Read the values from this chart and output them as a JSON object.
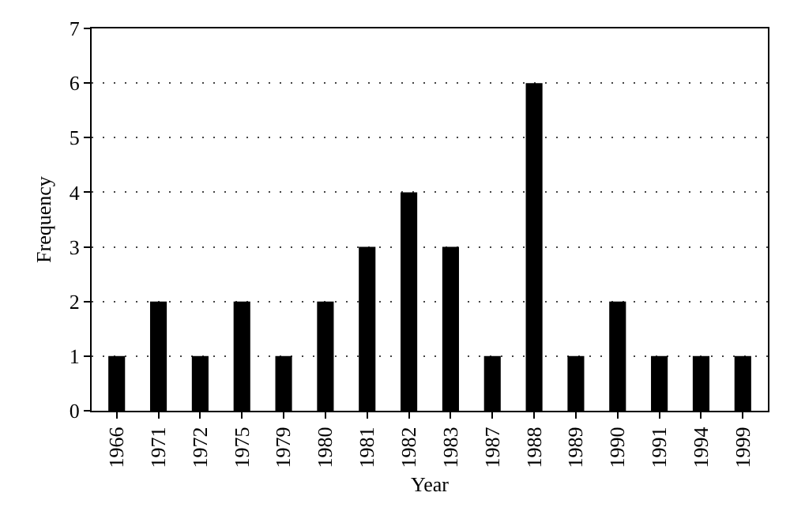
{
  "chart_data": {
    "type": "bar",
    "xlabel": "Year",
    "ylabel": "Frequency",
    "categories": [
      "1966",
      "1971",
      "1972",
      "1975",
      "1979",
      "1980",
      "1981",
      "1982",
      "1983",
      "1987",
      "1988",
      "1989",
      "1990",
      "1991",
      "1994",
      "1999"
    ],
    "values": [
      1,
      2,
      1,
      2,
      1,
      2,
      3,
      4,
      3,
      1,
      6,
      1,
      2,
      1,
      1,
      1
    ],
    "color": "#000000",
    "ylim": [
      0,
      7
    ],
    "yticks": [
      0,
      1,
      2,
      3,
      4,
      5,
      6,
      7
    ],
    "grid": "y"
  }
}
